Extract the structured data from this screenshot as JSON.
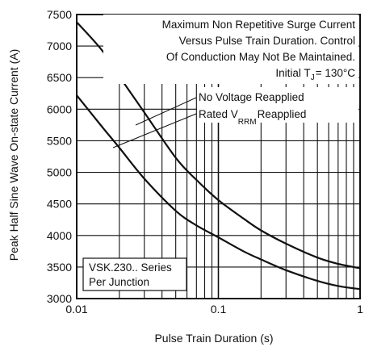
{
  "chart_data": {
    "type": "line",
    "xlabel": "Pulse Train Duration (s)",
    "ylabel": "Peak Half Sine Wave On-state Current (A)",
    "xscale": "log",
    "xlim": [
      0.01,
      1
    ],
    "ylim": [
      3000,
      7500
    ],
    "grid": true,
    "x_ticks": [
      "0.01",
      "0.1",
      "1"
    ],
    "y_ticks": [
      "7500",
      "7000",
      "6500",
      "6000",
      "5500",
      "5000",
      "4500",
      "4000",
      "3500",
      "3000"
    ],
    "annotation": {
      "line1": "Maximum Non Repetitive Surge Current",
      "line2": "Versus Pulse Train Duration. Control",
      "line3": "Of Conduction May Not Be Maintained.",
      "line4_prefix": "Initial T",
      "line4_sub": "J",
      "line4_suffix": "= 130°C"
    },
    "series_labels": {
      "upper": "No Voltage Reapplied",
      "lower_prefix": "Rated V",
      "lower_sub": "RRM",
      "lower_suffix": "Reapplied"
    },
    "device_label": {
      "line1": "VSK.230.. Series",
      "line2": "Per Junction"
    },
    "series": [
      {
        "name": "No Voltage Reapplied",
        "x": [
          0.01,
          0.015,
          0.02,
          0.03,
          0.05,
          0.07,
          0.1,
          0.15,
          0.2,
          0.3,
          0.5,
          0.7,
          1.0
        ],
        "y": [
          7380,
          6940,
          6520,
          5950,
          5230,
          4880,
          4560,
          4270,
          4080,
          3870,
          3650,
          3550,
          3480
        ]
      },
      {
        "name": "Rated VRRM Reapplied",
        "x": [
          0.01,
          0.015,
          0.02,
          0.03,
          0.05,
          0.07,
          0.1,
          0.15,
          0.2,
          0.3,
          0.5,
          0.7,
          1.0
        ],
        "y": [
          6220,
          5730,
          5390,
          4900,
          4390,
          4160,
          3970,
          3750,
          3620,
          3450,
          3280,
          3200,
          3150
        ]
      }
    ]
  }
}
